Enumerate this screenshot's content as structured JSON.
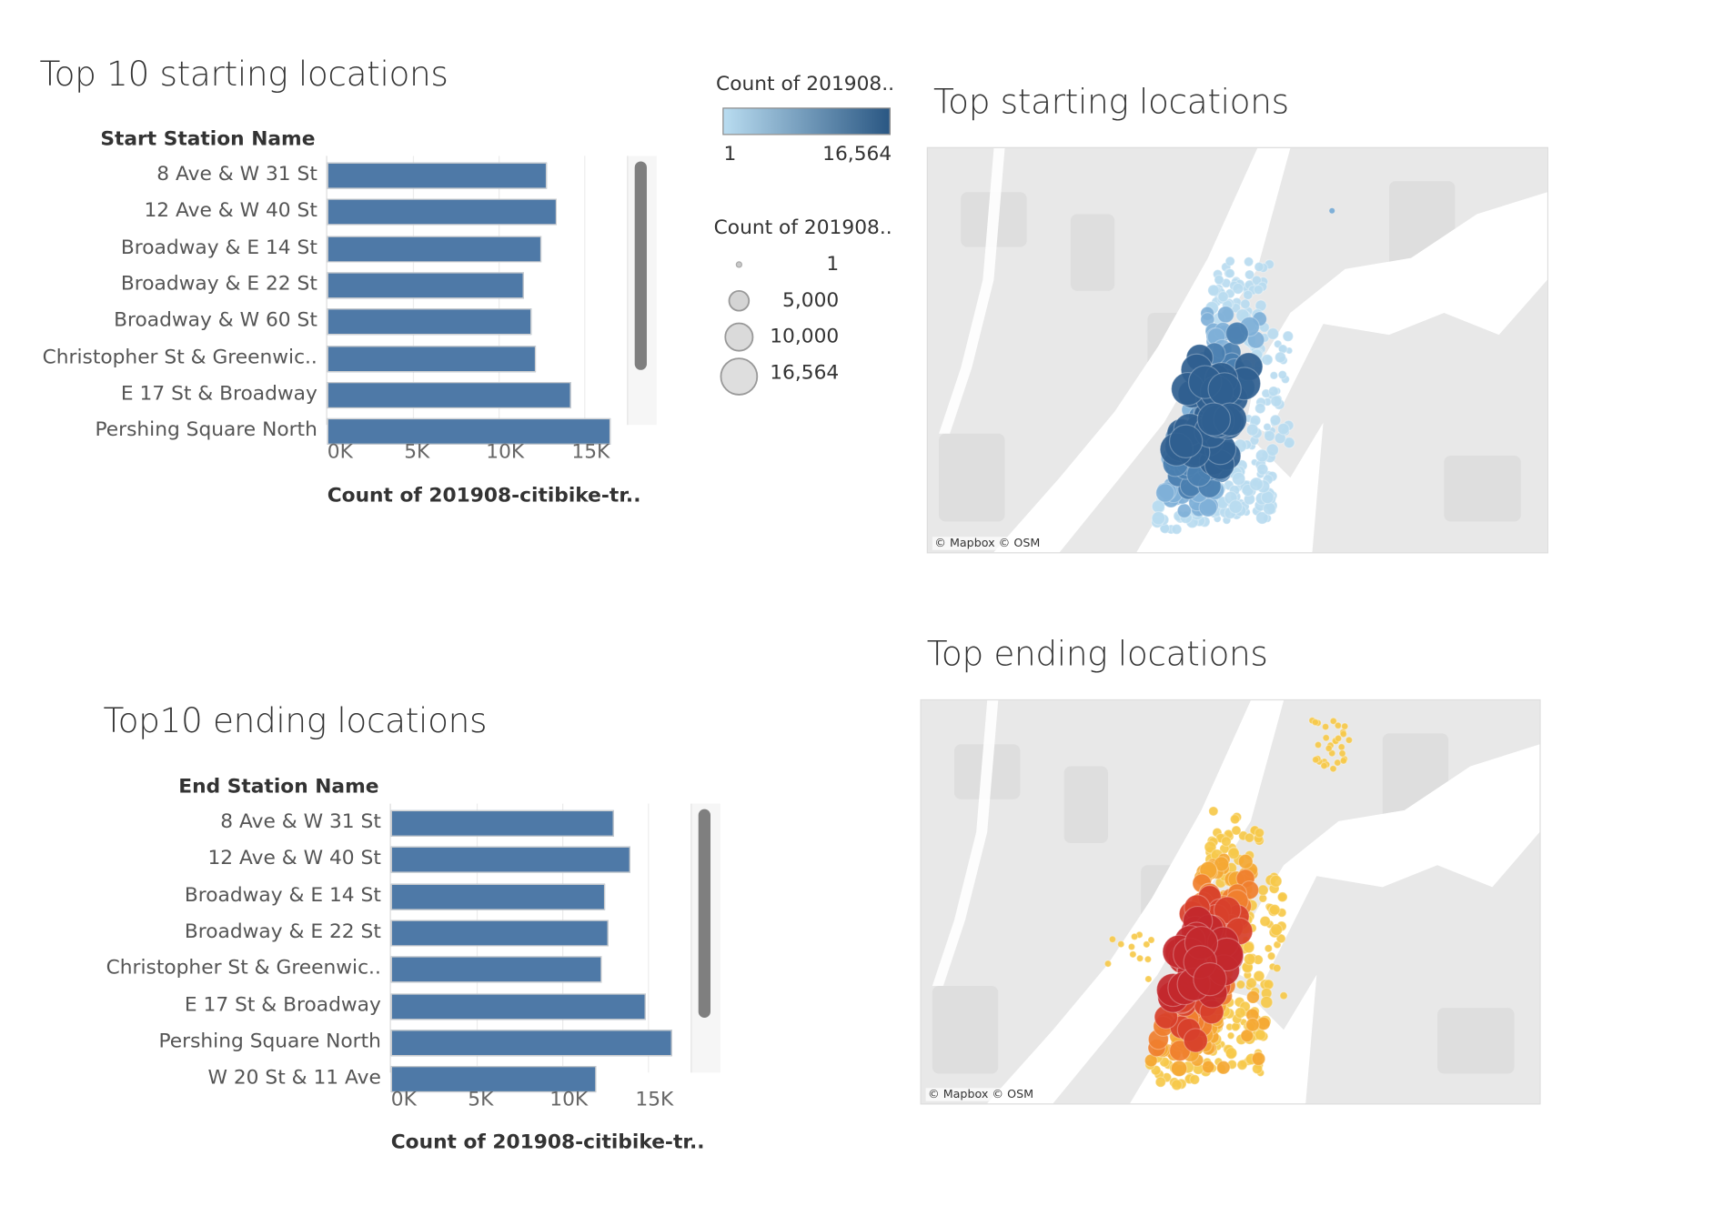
{
  "start_chart": {
    "title": "Top 10 starting locations",
    "row_header": "Start Station Name",
    "x_axis_title": "Count of 201908-citibike-tr..",
    "chart_data": {
      "type": "bar",
      "orientation": "horizontal",
      "categories": [
        "8 Ave & W 31 St",
        "12 Ave & W 40 St",
        "Broadway & E 14 St",
        "Broadway & E 22 St",
        "Broadway & W 60 St",
        "Christopher St & Greenwic..",
        "E 17 St & Broadway",
        "Pershing Square North"
      ],
      "values": [
        12800,
        13400,
        12500,
        11500,
        11900,
        12200,
        14200,
        16564
      ],
      "xlabel": "Count of 201908-citibike-tr..",
      "ylabel": "Start Station Name",
      "xlim": [
        0,
        18000
      ],
      "x_ticks": [
        "0K",
        "5K",
        "10K",
        "15K"
      ],
      "grid": true,
      "color": "#4e79a7"
    }
  },
  "end_chart": {
    "title": "Top10 ending locations",
    "row_header": "End Station Name",
    "x_axis_title": "Count of 201908-citibike-tr..",
    "chart_data": {
      "type": "bar",
      "orientation": "horizontal",
      "categories": [
        "8 Ave & W 31 St",
        "12 Ave & W 40 St",
        "Broadway & E 14 St",
        "Broadway & E 22 St",
        "Christopher St & Greenwic..",
        "E 17 St & Broadway",
        "Pershing Square North",
        "W 20 St & 11 Ave"
      ],
      "values": [
        13000,
        14000,
        12500,
        12700,
        12300,
        14900,
        16400,
        12000
      ],
      "xlabel": "Count of 201908-citibike-tr..",
      "ylabel": "End Station Name",
      "xlim": [
        0,
        18000
      ],
      "x_ticks": [
        "0K",
        "5K",
        "10K",
        "15K"
      ],
      "grid": true,
      "color": "#4e79a7"
    }
  },
  "legend": {
    "color_title": "Count of 201908..",
    "color_min": "1",
    "color_max": "16,564",
    "color_low": "#b9dcf0",
    "color_high": "#2a5783",
    "size_title": "Count of 201908..",
    "size_items": [
      "1",
      "5,000",
      "10,000",
      "16,564"
    ]
  },
  "start_map": {
    "title": "Top starting locations",
    "attribution": "© Mapbox © OSM",
    "colors": [
      "#b9dcf0",
      "#7fb0d8",
      "#4a7fb0",
      "#2f5f90"
    ]
  },
  "end_map": {
    "title": "Top ending locations",
    "attribution": "© Mapbox © OSM",
    "colors": [
      "#f7c94a",
      "#f5a833",
      "#f07f2e",
      "#d8402b",
      "#c3282d"
    ]
  }
}
